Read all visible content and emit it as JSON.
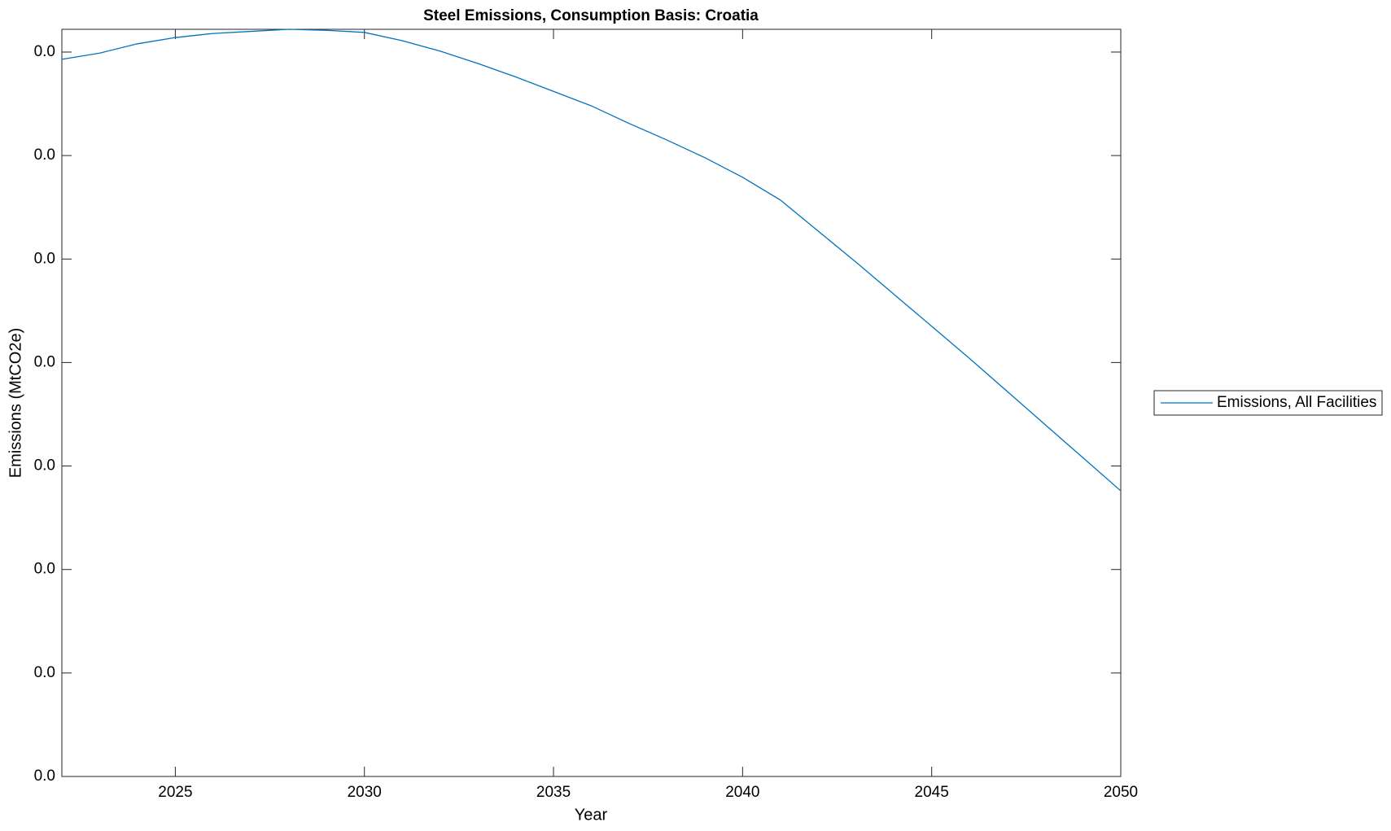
{
  "chart_data": {
    "type": "line",
    "title": "Steel Emissions, Consumption Basis: Croatia",
    "x_label": "Year",
    "y_label": "Emissions (MtCO2e)",
    "x": [
      2022,
      2023,
      2024,
      2025,
      2026,
      2027,
      2028,
      2029,
      2030,
      2031,
      2032,
      2033,
      2034,
      2035,
      2036,
      2037,
      2038,
      2039,
      2040,
      2041,
      2042,
      2043,
      2044,
      2045,
      2046,
      2047,
      2048,
      2049,
      2050
    ],
    "series": [
      {
        "name": "Emissions, All Facilities",
        "color": "#0072bd",
        "values": [
          0.0693,
          0.0699,
          0.0708,
          0.0714,
          0.0718,
          0.072,
          0.0722,
          0.0721,
          0.0719,
          0.0711,
          0.0701,
          0.0689,
          0.0676,
          0.0662,
          0.0648,
          0.0631,
          0.0615,
          0.0598,
          0.0579,
          0.0557,
          0.0527,
          0.0497,
          0.0466,
          0.0435,
          0.0404,
          0.0372,
          0.034,
          0.0308,
          0.0276
        ]
      }
    ],
    "xlim": [
      2022,
      2050
    ],
    "xticks": [
      2025,
      2030,
      2035,
      2040,
      2045,
      2050
    ],
    "ylim": [
      0,
      0.0722
    ],
    "yticks": [
      {
        "value": 0,
        "label": "0.0"
      },
      {
        "value": 0.01,
        "label": "0.0"
      },
      {
        "value": 0.02,
        "label": "0.0"
      },
      {
        "value": 0.03,
        "label": "0.0"
      },
      {
        "value": 0.04,
        "label": "0.0"
      },
      {
        "value": 0.05,
        "label": "0.0"
      },
      {
        "value": 0.06,
        "label": "0.0"
      },
      {
        "value": 0.07,
        "label": "0.0"
      }
    ],
    "grid": false,
    "legend": "outside-right"
  }
}
